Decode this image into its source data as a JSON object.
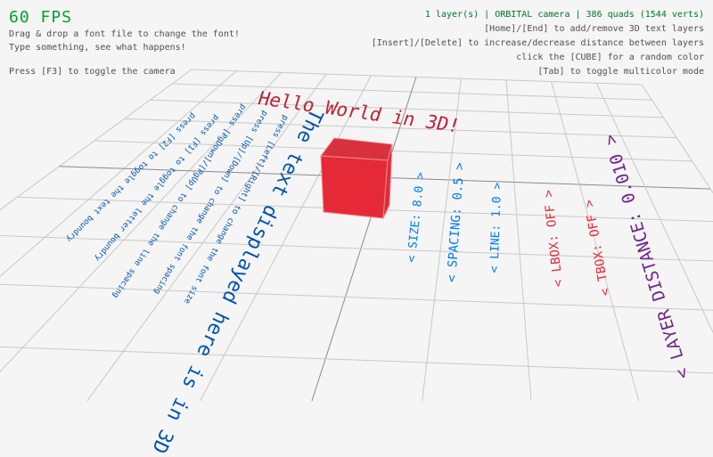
{
  "fps": "60 FPS",
  "help_left": [
    "Drag & drop a font file to change the font!",
    "Type something, see what happens!",
    "",
    "Press [F3] to toggle the camera"
  ],
  "status": "1 layer(s) | ORBITAL camera |  386 quads (1544 verts)",
  "help_right": [
    "[Home]/[End] to add/remove 3D text layers",
    "[Insert]/[Delete] to increase/decrease distance between layers",
    "click the [CUBE] for a random color",
    "[Tab] to toggle multicolor mode"
  ],
  "scene": {
    "title3d": "Hello World in 3D!",
    "big_text": "The text displayed here is in 3D",
    "instructions": [
      "press [F2] to toggle the text boundry",
      "press [F1] to toggle the letter boundry",
      "press [PgDown]/[PgUp] to change the line spacing",
      "press [Up]/[Down] to change the font spacing",
      "press [Left]/[Right] to change the font size"
    ],
    "labels": {
      "size": "< SIZE: 8.0 >",
      "spacing": "< SPACING: 0.5 >",
      "line": "< LINE: 1.0 >",
      "lbox": "< LBOX: OFF >",
      "tbox": "< TBOX: OFF >",
      "layer": "< LAYER DISTANCE: 0.010 >"
    }
  },
  "colors": {
    "fps": "#00a030",
    "status": "#00752c",
    "blue": "#0052ac",
    "lightblue": "#0079f1",
    "red": "#e62937",
    "maroon": "#be2137",
    "purple": "#70238a",
    "cube": "#e62937"
  }
}
